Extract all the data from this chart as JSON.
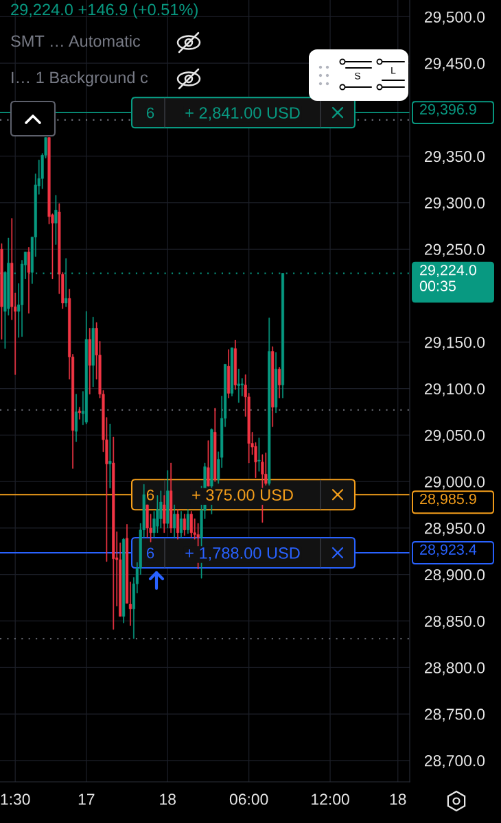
{
  "chart_data": {
    "type": "candlestick",
    "title": "29,224.0 +146.9 (+0.51%)",
    "categories": [
      null,
      null,
      null,
      null,
      "1:30",
      null,
      null,
      null,
      null,
      null,
      null,
      null,
      null,
      null,
      null,
      null,
      null,
      null,
      null,
      null,
      null,
      null,
      null,
      null,
      null,
      "17",
      null,
      null,
      null,
      null,
      null,
      null,
      null,
      null,
      null,
      null,
      null,
      null,
      null,
      null,
      null,
      null,
      null,
      null,
      null,
      null,
      null,
      null,
      null,
      "18",
      null,
      null,
      null,
      null,
      null,
      null,
      null,
      null,
      null,
      null,
      null,
      null,
      null,
      null,
      null,
      null,
      null,
      null,
      null,
      null,
      null,
      null,
      null,
      "06:00",
      null,
      null,
      null,
      null,
      null,
      null,
      null,
      null,
      null,
      null,
      null,
      null,
      null,
      null,
      null,
      null,
      null,
      null,
      null,
      null,
      null,
      null,
      null,
      "12:00",
      null,
      null,
      null,
      null,
      null,
      null,
      null,
      null,
      null,
      null,
      null,
      null,
      null,
      null,
      null,
      null,
      null,
      null,
      null,
      "18",
      null,
      null,
      null
    ],
    "ohlc": [
      [
        29250,
        29256,
        29153,
        29188
      ],
      [
        29183,
        29226,
        29143,
        29225
      ],
      [
        29186,
        29262,
        29179,
        29235
      ],
      [
        29235,
        29283,
        29174,
        29188
      ],
      [
        29188,
        29203,
        29115,
        29183
      ],
      [
        29183,
        29213,
        29155,
        29190
      ],
      [
        29190,
        29238,
        29156,
        29234
      ],
      [
        29233,
        29247,
        29218,
        29247
      ],
      [
        29247,
        29252,
        29181,
        29225
      ],
      [
        29225,
        29263,
        29213,
        29263
      ],
      [
        29263,
        29331,
        29242,
        29319
      ],
      [
        29318,
        29346,
        29309,
        29326
      ],
      [
        29326,
        29353,
        29315,
        29351
      ],
      [
        29351,
        29370,
        29348,
        29370
      ],
      [
        29370,
        29370,
        29277,
        29285
      ],
      [
        29287,
        29288,
        29218,
        29278
      ],
      [
        29278,
        29308,
        29255,
        29292
      ],
      [
        29290,
        29299,
        29202,
        29223
      ],
      [
        29223,
        29225,
        29186,
        29192
      ],
      [
        29192,
        29240,
        29188,
        29197
      ],
      [
        29197,
        29207,
        29110,
        29134
      ],
      [
        29134,
        29137,
        29014,
        29055
      ],
      [
        29054,
        29094,
        29043,
        29075
      ],
      [
        29076,
        29080,
        29067,
        29074
      ],
      [
        29073,
        29097,
        29061,
        29076
      ],
      [
        29064,
        29183,
        29062,
        29153
      ],
      [
        29153,
        29165,
        29094,
        29125
      ],
      [
        29125,
        29177,
        29102,
        29165
      ],
      [
        29165,
        29171,
        29110,
        29136
      ],
      [
        29136,
        29151,
        29090,
        29094
      ],
      [
        29094,
        29098,
        29032,
        29045
      ],
      [
        29045,
        29069,
        28914,
        29019
      ],
      [
        29019,
        29062,
        28993,
        29022
      ],
      [
        29020,
        29048,
        28841,
        28917
      ],
      [
        28918,
        28946,
        28866,
        28916
      ],
      [
        28916,
        28934,
        28855,
        28855
      ],
      [
        28855,
        28939,
        28848,
        28938
      ],
      [
        28939,
        28954,
        28869,
        28869
      ],
      [
        28868,
        28892,
        28845,
        28863
      ],
      [
        28863,
        28897,
        28831,
        28890
      ],
      [
        28890,
        28913,
        28880,
        28907
      ],
      [
        28907,
        28955,
        28900,
        28948
      ],
      [
        28948,
        28997,
        28940,
        28986
      ],
      [
        28975,
        28975,
        28940,
        28950
      ],
      [
        28950,
        28965,
        28935,
        28945
      ],
      [
        28945,
        28968,
        28940,
        28960
      ],
      [
        28952,
        28985,
        28945,
        28970
      ],
      [
        28960,
        28990,
        28950,
        28978
      ],
      [
        28975,
        28985,
        28945,
        28955
      ],
      [
        28955,
        29012,
        28950,
        28990
      ],
      [
        28990,
        29020,
        28945,
        28950
      ],
      [
        28950,
        28975,
        28940,
        28965
      ],
      [
        28965,
        28970,
        28938,
        28945
      ],
      [
        28945,
        28968,
        28940,
        28960
      ],
      [
        28960,
        28965,
        28942,
        28948
      ],
      [
        28948,
        28970,
        28944,
        28965
      ],
      [
        28965,
        28968,
        28940,
        28945
      ],
      [
        28945,
        28960,
        28938,
        28943
      ],
      [
        28943,
        28955,
        28906,
        28940
      ],
      [
        28940,
        28995,
        28896,
        28969
      ],
      [
        28969,
        29020,
        28960,
        29016
      ],
      [
        29015,
        29044,
        28995,
        28995
      ],
      [
        28995,
        29057,
        28965,
        29056
      ],
      [
        29053,
        29079,
        29000,
        29002
      ],
      [
        29002,
        29032,
        28998,
        29024
      ],
      [
        29026,
        29092,
        29015,
        29068
      ],
      [
        29068,
        29126,
        29059,
        29126
      ],
      [
        29124,
        29142,
        29090,
        29095
      ],
      [
        29095,
        29144,
        29092,
        29144
      ],
      [
        29143,
        29152,
        29099,
        29104
      ],
      [
        29103,
        29121,
        29085,
        29105
      ],
      [
        29104,
        29111,
        29092,
        29105
      ],
      [
        29104,
        29115,
        29070,
        29091
      ],
      [
        29091,
        29095,
        29020,
        29041
      ],
      [
        29041,
        29053,
        29029,
        29037
      ],
      [
        29038,
        29042,
        29004,
        29021
      ],
      [
        29022,
        29047,
        29011,
        29023
      ],
      [
        29021,
        29029,
        28956,
        29008
      ],
      [
        29008,
        29031,
        28996,
        28998
      ],
      [
        28998,
        29176,
        28996,
        29140
      ],
      [
        29140,
        29145,
        29059,
        29080
      ],
      [
        29080,
        29139,
        29074,
        29121
      ],
      [
        29121,
        29123,
        29090,
        29104
      ],
      [
        29104,
        29224,
        29090,
        29224
      ],
      null,
      null,
      null,
      null,
      null,
      null,
      null,
      null,
      null,
      null,
      null,
      null,
      null,
      null,
      null,
      null,
      null,
      null,
      null,
      null,
      null,
      null,
      null,
      null,
      null,
      null,
      null,
      null,
      null,
      null,
      null,
      null,
      null,
      null,
      null,
      null,
      null
    ],
    "colors": [
      "#f23645",
      "#089981",
      "#089981",
      "#f23645",
      "#f23645",
      "#089981",
      "#089981",
      "#089981",
      "#f23645",
      "#089981",
      "#089981",
      "#089981",
      "#089981",
      "#089981",
      "#f23645",
      "#f23645",
      "#089981",
      "#f23645",
      "#f23645",
      "#089981",
      "#f23645",
      "#f23645",
      "#089981",
      "#f23645",
      "#089981",
      "#089981",
      "#f23645",
      "#089981",
      "#f23645",
      "#f23645",
      "#f23645",
      "#f23645",
      "#089981",
      "#f23645",
      "#f23645",
      "#f23645",
      "#089981",
      "#f23645",
      "#f23645",
      "#089981",
      "#089981",
      "#089981",
      "#089981",
      "#f23645",
      "#f23645",
      "#089981",
      "#089981",
      "#089981",
      "#f23645",
      "#089981",
      "#f23645",
      "#089981",
      "#f23645",
      "#089981",
      "#f23645",
      "#089981",
      "#f23645",
      "#f23645",
      "#f23645",
      "#089981",
      "#089981",
      "#f23645",
      "#089981",
      "#f23645",
      "#089981",
      "#089981",
      "#089981",
      "#f23645",
      "#089981",
      "#f23645",
      "#089981",
      "#089981",
      "#f23645",
      "#f23645",
      "#f23645",
      "#f23645",
      "#089981",
      "#f23645",
      "#f23645",
      "#089981",
      "#f23645",
      "#089981",
      "#f23645",
      "#089981",
      null,
      null,
      null,
      null,
      null,
      null,
      null,
      null,
      null,
      null,
      null,
      null,
      null,
      null,
      null,
      null,
      null,
      null,
      null,
      null,
      null,
      null,
      null,
      null,
      null,
      null,
      null,
      null,
      null,
      null,
      null,
      null,
      null,
      null,
      null,
      null,
      null
    ],
    "ylim": [
      28677,
      29518
    ],
    "yticks": [
      {
        "value": 28700,
        "label": "28,700.0"
      },
      {
        "value": 28750,
        "label": "28,750.0"
      },
      {
        "value": 28800,
        "label": "28,800.0"
      },
      {
        "value": 28850,
        "label": "28,850.0"
      },
      {
        "value": 28900,
        "label": "28,900.0"
      },
      {
        "value": 28950,
        "label": "28,950.0"
      },
      {
        "value": 29000,
        "label": "29,000.0"
      },
      {
        "value": 29050,
        "label": "29,050.0"
      },
      {
        "value": 29100,
        "label": "29,100.0"
      },
      {
        "value": 29150,
        "label": "29,150.0"
      },
      {
        "value": 29250,
        "label": "29,250.0"
      },
      {
        "value": 29300,
        "label": "29,300.0"
      },
      {
        "value": 29350,
        "label": "29,350.0"
      },
      {
        "value": 29450,
        "label": "29,450.0"
      },
      {
        "value": 29500,
        "label": "29,500.0"
      }
    ],
    "grid": true,
    "ref_lines": [
      {
        "axis": "y",
        "value": 29396.9,
        "label": "29,396.9",
        "color": "#089981",
        "line_style": "solid"
      },
      {
        "axis": "y",
        "value": 29389,
        "color": "#6f727b",
        "line_style": "dotted"
      },
      {
        "axis": "y",
        "value": 29224,
        "label": "29,224.0\n00:35",
        "color": "#089981",
        "line_style": "dotted"
      },
      {
        "axis": "y",
        "value": 29077,
        "color": "#6f727b",
        "line_style": "dotted"
      },
      {
        "axis": "y",
        "value": 28985.9,
        "label": "28,985.9",
        "color": "#f59f1b",
        "line_style": "solid"
      },
      {
        "axis": "y",
        "value": 28923.4,
        "label": "28,923.4",
        "color": "#2962ff",
        "line_style": "solid"
      },
      {
        "axis": "y",
        "value": 28831,
        "color": "#6f727b",
        "line_style": "dotted"
      }
    ],
    "annotations": [
      "SMT … Automatic",
      "I… 1 Background c",
      "S",
      "L",
      {
        "text": "6",
        "y": 29396.9
      },
      {
        "text": "+ 2,841.00 USD",
        "y": 29396.9
      },
      {
        "text": "6",
        "y": 28985.9
      },
      {
        "text": "+ 375.00 USD",
        "y": 28985.9
      },
      {
        "text": "6",
        "y": 28923.4
      },
      {
        "text": "+ 1,788.00 USD",
        "y": 28923.4
      }
    ]
  }
}
